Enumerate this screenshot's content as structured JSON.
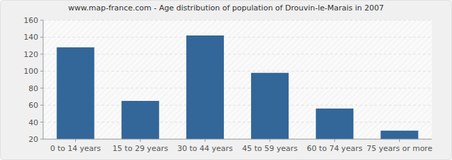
{
  "chart_data": {
    "type": "bar",
    "title": "www.map-france.com - Age distribution of population of Drouvin-le-Marais in 2007",
    "categories": [
      "0 to 14 years",
      "15 to 29 years",
      "30 to 44 years",
      "45 to 59 years",
      "60 to 74 years",
      "75 years or more"
    ],
    "values": [
      128,
      65,
      142,
      98,
      56,
      30
    ],
    "color": "#336699",
    "ylim": [
      20,
      160
    ],
    "yticks": [
      20,
      40,
      60,
      80,
      100,
      120,
      140,
      160
    ],
    "grid": true
  }
}
